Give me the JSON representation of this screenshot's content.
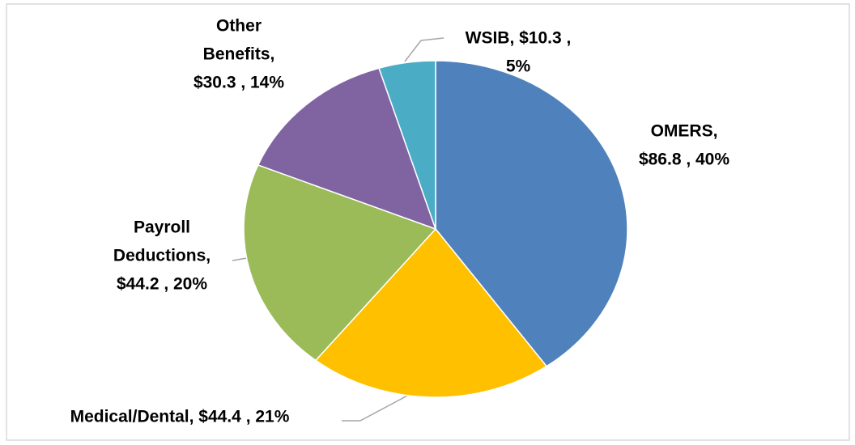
{
  "chart_data": {
    "type": "pie",
    "values": [
      86.8,
      44.4,
      44.2,
      30.3,
      10.3
    ],
    "colors": [
      "#4f81bd",
      "#ffc000",
      "#9bbb59",
      "#8064a2",
      "#4bacc6"
    ],
    "value_labels": [
      [
        "OMERS,",
        "$86.8 , 40%"
      ],
      [
        "Medical/Dental,  $44.4 , 21%"
      ],
      [
        "Payroll",
        "Deductions,",
        "$44.2 , 20%"
      ],
      [
        "Other",
        "Benefits,",
        "$30.3 , 14%"
      ],
      [
        "WSIB,  $10.3 ,",
        "5%"
      ]
    ]
  }
}
